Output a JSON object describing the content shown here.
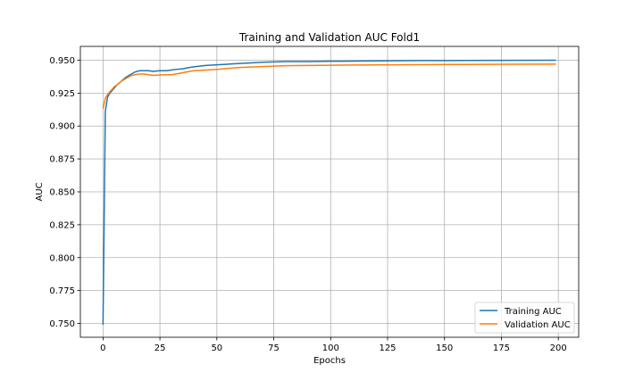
{
  "chart_data": {
    "type": "line",
    "title": "Training and Validation AUC Fold1",
    "xlabel": "Epochs",
    "ylabel": "AUC",
    "xlim": [
      -9.95,
      208.95
    ],
    "ylim": [
      0.7395,
      0.9605
    ],
    "x_ticks": [
      0,
      25,
      50,
      75,
      100,
      125,
      150,
      175,
      200
    ],
    "y_ticks": [
      0.75,
      0.775,
      0.8,
      0.825,
      0.85,
      0.875,
      0.9,
      0.925,
      0.95
    ],
    "y_tick_labels": [
      "0.750",
      "0.775",
      "0.800",
      "0.825",
      "0.850",
      "0.875",
      "0.900",
      "0.925",
      "0.950"
    ],
    "grid": true,
    "legend_position": "lower-right",
    "series": [
      {
        "name": "Training AUC",
        "color": "#1f77b4",
        "x": [
          0,
          1,
          2,
          3,
          4,
          5,
          6,
          8,
          10,
          12,
          14,
          16,
          18,
          20,
          22,
          25,
          28,
          30,
          32,
          35,
          38,
          40,
          45,
          50,
          55,
          60,
          65,
          70,
          80,
          90,
          100,
          120,
          140,
          160,
          180,
          199
        ],
        "values": [
          0.749,
          0.911,
          0.922,
          0.925,
          0.927,
          0.929,
          0.931,
          0.934,
          0.937,
          0.939,
          0.941,
          0.942,
          0.942,
          0.942,
          0.9415,
          0.942,
          0.942,
          0.9425,
          0.943,
          0.9435,
          0.9445,
          0.945,
          0.946,
          0.9465,
          0.947,
          0.9475,
          0.948,
          0.9485,
          0.949,
          0.949,
          0.9492,
          0.9495,
          0.9497,
          0.9498,
          0.9499,
          0.95
        ]
      },
      {
        "name": "Validation AUC",
        "color": "#ff7f0e",
        "x": [
          0,
          1,
          2,
          3,
          4,
          5,
          6,
          8,
          10,
          12,
          14,
          16,
          18,
          20,
          22,
          25,
          28,
          30,
          32,
          35,
          38,
          40,
          45,
          50,
          55,
          60,
          70,
          80,
          100,
          120,
          140,
          160,
          180,
          199
        ],
        "values": [
          0.913,
          0.921,
          0.924,
          0.926,
          0.928,
          0.93,
          0.931,
          0.934,
          0.936,
          0.938,
          0.939,
          0.9395,
          0.9395,
          0.939,
          0.9385,
          0.9388,
          0.939,
          0.939,
          0.9395,
          0.9405,
          0.9415,
          0.942,
          0.9425,
          0.943,
          0.9438,
          0.9445,
          0.9452,
          0.9458,
          0.9462,
          0.9464,
          0.9466,
          0.9468,
          0.9469,
          0.947
        ]
      }
    ]
  }
}
